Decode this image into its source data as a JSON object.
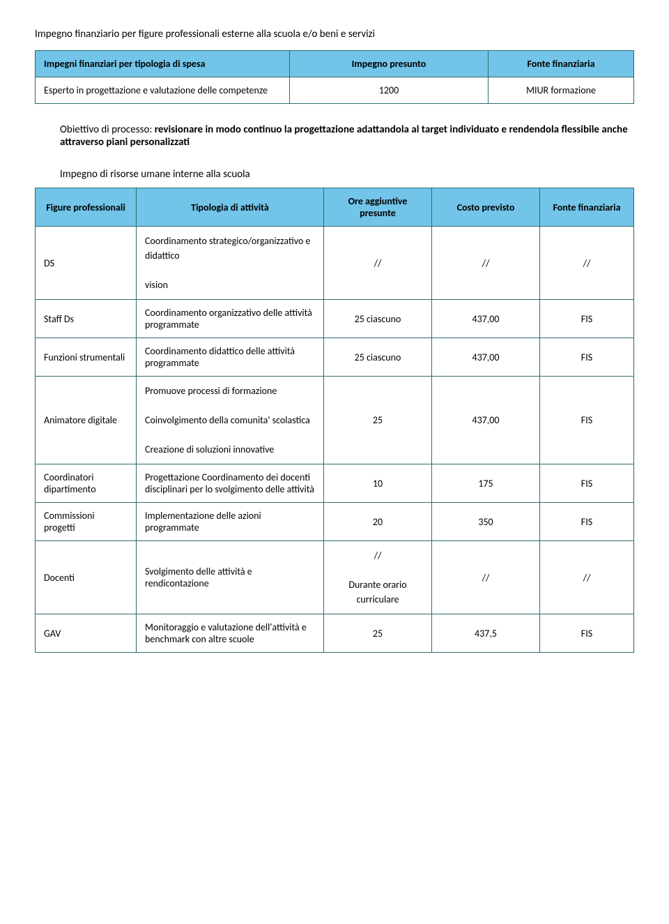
{
  "heading1": "Impegno finanziario per  figure professionali esterne alla scuola e/o beni e servizi",
  "table1": {
    "headers": [
      "Impegni  finanziari per tipologia di spesa",
      "Impegno presunto",
      "Fonte finanziaria"
    ],
    "row": [
      "Esperto in progettazione e valutazione delle competenze",
      "1200",
      "MIUR formazione"
    ]
  },
  "objective": "Obiettivo di processo: ",
  "objective_bold": "revisionare in modo continuo la progettazione adattandola al target individuato e rendendola flessibile anche attraverso piani personalizzati",
  "heading2": "Impegno di risorse umane interne alla scuola",
  "table2": {
    "headers": [
      "Figure professionali",
      "Tipologia di attività",
      "Ore aggiuntive presunte",
      "Costo previsto",
      "Fonte finanziaria"
    ],
    "rows": [
      {
        "fig": "DS",
        "tip": "Coordinamento strategico/organizzativo e didattico\n\nvision",
        "ore": "//",
        "costo": "//",
        "fonte": "//"
      },
      {
        "fig": "Staff Ds",
        "tip": "Coordinamento organizzativo delle attività programmate",
        "ore": "25 ciascuno",
        "costo": "437,00",
        "fonte": "FIS"
      },
      {
        "fig": "Funzioni strumentali",
        "tip": "Coordinamento didattico delle attività programmate",
        "ore": "25 ciascuno",
        "costo": "437,00",
        "fonte": "FIS"
      },
      {
        "fig": "Animatore digitale",
        "tip": "Promuove processi di formazione\n\nCoinvolgimento della comunita' scolastica\n\nCreazione di soluzioni innovative",
        "ore": "25",
        "costo": "437,00",
        "fonte": "FIS"
      },
      {
        "fig": "Coordinatori dipartimento",
        "tip": "Progettazione Coordinamento dei docenti disciplinari per lo svolgimento delle attività",
        "ore": "10",
        "costo": "175",
        "fonte": "FIS"
      },
      {
        "fig": "Commissioni progetti",
        "tip": "Implementazione delle azioni programmate",
        "ore": "20",
        "costo": "350",
        "fonte": "FIS"
      },
      {
        "fig": "Docenti",
        "tip": "Svolgimento delle attività e rendicontazione",
        "ore": "//\n\nDurante orario curriculare",
        "costo": "//",
        "fonte": "//"
      },
      {
        "fig": "GAV",
        "tip": "Monitoraggio e valutazione dell'attività e benchmark con altre scuole",
        "ore": "25",
        "costo": "437,5",
        "fonte": "FIS"
      }
    ]
  }
}
